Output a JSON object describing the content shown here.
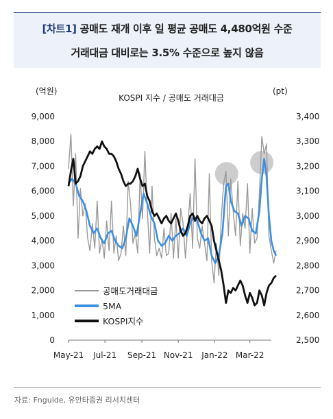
{
  "header": {
    "tag": "[차트1]",
    "line1": "공매도 재개 이후 일 평균 공매도 4,480억원 수준",
    "line2": "거래대금 대비로는 3.5% 수준으로 높지 않음"
  },
  "source": "자료: Fnguide, 유안타증권 리서치센터",
  "colors": {
    "title_accent": "#1f3a78",
    "raw": "#9a9a9a",
    "ma": "#3d8fe0",
    "kospi": "#111111",
    "highlight": "#c8c8c8"
  },
  "chart_data": {
    "type": "line",
    "title": "KOSPI 지수 / 공매도 거래대금",
    "left_unit": "(억원)",
    "right_unit": "(pt)",
    "x_ticks": [
      "May-21",
      "Jul-21",
      "Sep-21",
      "Nov-21",
      "Jan-22",
      "Mar-22"
    ],
    "left_ticks": [
      "9,000",
      "8,000",
      "7,000",
      "6,000",
      "5,000",
      "4,000",
      "3,000",
      "2,000",
      "1,000",
      "0"
    ],
    "right_ticks": [
      "3,400",
      "3,300",
      "3,200",
      "3,100",
      "3,000",
      "2,900",
      "2,800",
      "2,700",
      "2,600",
      "2,500"
    ],
    "left_range": [
      0,
      9000
    ],
    "right_range": [
      2500,
      3400
    ],
    "x_range_days": [
      0,
      340
    ],
    "legend": [
      "공매도거래대금",
      "5MA",
      "KOSPI지수"
    ],
    "legend_placement": "bottom-left",
    "highlights": [
      {
        "x_day": 265,
        "value": 6700,
        "axis": "left"
      },
      {
        "x_day": 324,
        "value": 7150,
        "axis": "left"
      }
    ],
    "series": [
      {
        "name": "공매도거래대금",
        "axis": "left",
        "points": [
          [
            0,
            6900
          ],
          [
            4,
            8300
          ],
          [
            8,
            5400
          ],
          [
            12,
            7500
          ],
          [
            16,
            4100
          ],
          [
            20,
            6100
          ],
          [
            24,
            5000
          ],
          [
            28,
            5500
          ],
          [
            32,
            4100
          ],
          [
            36,
            3600
          ],
          [
            40,
            4700
          ],
          [
            44,
            3700
          ],
          [
            48,
            5600
          ],
          [
            52,
            3500
          ],
          [
            56,
            4100
          ],
          [
            60,
            3300
          ],
          [
            64,
            4800
          ],
          [
            68,
            3600
          ],
          [
            72,
            5600
          ],
          [
            76,
            3500
          ],
          [
            80,
            4200
          ],
          [
            84,
            3200
          ],
          [
            88,
            3500
          ],
          [
            92,
            4600
          ],
          [
            96,
            3400
          ],
          [
            100,
            6400
          ],
          [
            104,
            5500
          ],
          [
            108,
            3900
          ],
          [
            112,
            4300
          ],
          [
            116,
            3500
          ],
          [
            120,
            6700
          ],
          [
            124,
            4900
          ],
          [
            128,
            7600
          ],
          [
            132,
            5300
          ],
          [
            136,
            3500
          ],
          [
            140,
            6200
          ],
          [
            144,
            4100
          ],
          [
            148,
            3400
          ],
          [
            152,
            3700
          ],
          [
            156,
            3300
          ],
          [
            160,
            4500
          ],
          [
            164,
            3400
          ],
          [
            168,
            3500
          ],
          [
            172,
            5100
          ],
          [
            176,
            3300
          ],
          [
            180,
            4900
          ],
          [
            184,
            3300
          ],
          [
            188,
            5300
          ],
          [
            192,
            4700
          ],
          [
            196,
            3300
          ],
          [
            200,
            4600
          ],
          [
            204,
            5900
          ],
          [
            208,
            3700
          ],
          [
            212,
            7300
          ],
          [
            216,
            4100
          ],
          [
            220,
            3700
          ],
          [
            224,
            4600
          ],
          [
            228,
            3900
          ],
          [
            232,
            3200
          ],
          [
            236,
            6700
          ],
          [
            240,
            3200
          ],
          [
            244,
            2300
          ],
          [
            248,
            3900
          ],
          [
            252,
            2600
          ],
          [
            256,
            4900
          ],
          [
            260,
            6300
          ],
          [
            264,
            6800
          ],
          [
            268,
            4200
          ],
          [
            272,
            6500
          ],
          [
            276,
            5200
          ],
          [
            280,
            4200
          ],
          [
            284,
            6400
          ],
          [
            288,
            3800
          ],
          [
            292,
            5100
          ],
          [
            296,
            4500
          ],
          [
            300,
            6300
          ],
          [
            304,
            3500
          ],
          [
            308,
            5300
          ],
          [
            312,
            3900
          ],
          [
            316,
            4100
          ],
          [
            320,
            5900
          ],
          [
            324,
            8200
          ],
          [
            328,
            7500
          ],
          [
            332,
            7900
          ],
          [
            336,
            4200
          ],
          [
            340,
            3600
          ],
          [
            344,
            3100
          ],
          [
            348,
            3600
          ]
        ]
      },
      {
        "name": "5MA",
        "axis": "left",
        "points": [
          [
            0,
            6300
          ],
          [
            6,
            6500
          ],
          [
            12,
            6300
          ],
          [
            18,
            5800
          ],
          [
            24,
            5600
          ],
          [
            30,
            5200
          ],
          [
            36,
            4600
          ],
          [
            42,
            4300
          ],
          [
            48,
            4500
          ],
          [
            54,
            4100
          ],
          [
            60,
            3900
          ],
          [
            66,
            4300
          ],
          [
            72,
            4400
          ],
          [
            78,
            4000
          ],
          [
            84,
            3800
          ],
          [
            90,
            3700
          ],
          [
            96,
            4100
          ],
          [
            102,
            4900
          ],
          [
            108,
            4600
          ],
          [
            114,
            4200
          ],
          [
            120,
            5100
          ],
          [
            126,
            5900
          ],
          [
            132,
            5500
          ],
          [
            138,
            5000
          ],
          [
            144,
            4700
          ],
          [
            150,
            4000
          ],
          [
            156,
            3800
          ],
          [
            162,
            3900
          ],
          [
            168,
            4200
          ],
          [
            174,
            4000
          ],
          [
            180,
            4200
          ],
          [
            186,
            4300
          ],
          [
            192,
            4500
          ],
          [
            198,
            4200
          ],
          [
            204,
            4700
          ],
          [
            210,
            5000
          ],
          [
            216,
            4800
          ],
          [
            222,
            4300
          ],
          [
            228,
            4000
          ],
          [
            234,
            4100
          ],
          [
            240,
            3400
          ],
          [
            246,
            3100
          ],
          [
            252,
            3400
          ],
          [
            258,
            4300
          ],
          [
            264,
            6200
          ],
          [
            268,
            6300
          ],
          [
            272,
            5600
          ],
          [
            278,
            5200
          ],
          [
            284,
            5100
          ],
          [
            290,
            4600
          ],
          [
            296,
            5000
          ],
          [
            302,
            4900
          ],
          [
            308,
            4400
          ],
          [
            314,
            4300
          ],
          [
            320,
            5200
          ],
          [
            324,
            6500
          ],
          [
            328,
            7300
          ],
          [
            332,
            6600
          ],
          [
            336,
            5000
          ],
          [
            340,
            4000
          ],
          [
            344,
            3600
          ],
          [
            348,
            3400
          ]
        ]
      },
      {
        "name": "KOSPI지수",
        "axis": "right",
        "points": [
          [
            0,
            3120
          ],
          [
            4,
            3180
          ],
          [
            8,
            3230
          ],
          [
            12,
            3130
          ],
          [
            16,
            3140
          ],
          [
            20,
            3160
          ],
          [
            24,
            3200
          ],
          [
            28,
            3220
          ],
          [
            32,
            3240
          ],
          [
            36,
            3260
          ],
          [
            40,
            3250
          ],
          [
            44,
            3270
          ],
          [
            48,
            3280
          ],
          [
            52,
            3270
          ],
          [
            56,
            3300
          ],
          [
            60,
            3280
          ],
          [
            64,
            3270
          ],
          [
            68,
            3250
          ],
          [
            72,
            3250
          ],
          [
            76,
            3240
          ],
          [
            80,
            3220
          ],
          [
            84,
            3190
          ],
          [
            88,
            3170
          ],
          [
            92,
            3140
          ],
          [
            96,
            3120
          ],
          [
            100,
            3130
          ],
          [
            104,
            3130
          ],
          [
            108,
            3140
          ],
          [
            112,
            3160
          ],
          [
            116,
            3190
          ],
          [
            120,
            3150
          ],
          [
            124,
            3120
          ],
          [
            128,
            3130
          ],
          [
            132,
            3080
          ],
          [
            136,
            3060
          ],
          [
            140,
            3020
          ],
          [
            144,
            3000
          ],
          [
            148,
            3010
          ],
          [
            152,
            2990
          ],
          [
            156,
            2970
          ],
          [
            160,
            2990
          ],
          [
            164,
            3000
          ],
          [
            168,
            2980
          ],
          [
            172,
            2970
          ],
          [
            176,
            2990
          ],
          [
            180,
            3010
          ],
          [
            184,
            2980
          ],
          [
            188,
            2940
          ],
          [
            192,
            2920
          ],
          [
            196,
            2930
          ],
          [
            200,
            2960
          ],
          [
            204,
            3000
          ],
          [
            208,
            3010
          ],
          [
            212,
            2980
          ],
          [
            216,
            3000
          ],
          [
            220,
            2980
          ],
          [
            224,
            2970
          ],
          [
            228,
            2990
          ],
          [
            232,
            3000
          ],
          [
            236,
            2980
          ],
          [
            240,
            2960
          ],
          [
            244,
            2900
          ],
          [
            248,
            2860
          ],
          [
            252,
            2820
          ],
          [
            256,
            2780
          ],
          [
            260,
            2720
          ],
          [
            264,
            2650
          ],
          [
            268,
            2700
          ],
          [
            272,
            2690
          ],
          [
            276,
            2710
          ],
          [
            280,
            2700
          ],
          [
            284,
            2720
          ],
          [
            288,
            2740
          ],
          [
            292,
            2720
          ],
          [
            296,
            2680
          ],
          [
            300,
            2650
          ],
          [
            304,
            2690
          ],
          [
            308,
            2670
          ],
          [
            312,
            2640
          ],
          [
            316,
            2650
          ],
          [
            320,
            2700
          ],
          [
            324,
            2680
          ],
          [
            328,
            2640
          ],
          [
            332,
            2690
          ],
          [
            336,
            2720
          ],
          [
            340,
            2730
          ],
          [
            344,
            2750
          ],
          [
            348,
            2760
          ]
        ]
      }
    ]
  }
}
